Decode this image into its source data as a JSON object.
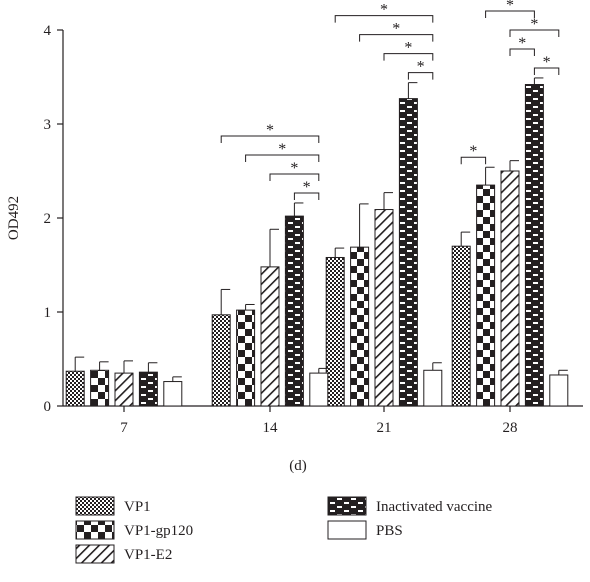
{
  "chart_data": {
    "type": "bar",
    "title": "",
    "subtitle": "(d)",
    "xlabel": "",
    "ylabel": "OD492",
    "ylim": [
      0,
      4
    ],
    "yticks": [
      "0",
      "1",
      "2",
      "3",
      "4"
    ],
    "categories": [
      "7",
      "14",
      "21",
      "28"
    ],
    "series": [
      {
        "name": "VP1",
        "pattern": "checker-fine",
        "values": [
          0.37,
          0.97,
          1.58,
          1.7
        ],
        "errors": [
          0.15,
          0.27,
          0.1,
          0.15
        ]
      },
      {
        "name": "VP1-gp120",
        "pattern": "checker-coarse",
        "values": [
          0.38,
          1.02,
          1.69,
          2.35
        ],
        "errors": [
          0.09,
          0.06,
          0.46,
          0.19
        ]
      },
      {
        "name": "VP1-E2",
        "pattern": "diagonal-hatch",
        "values": [
          0.35,
          1.48,
          2.09,
          2.5
        ],
        "errors": [
          0.13,
          0.4,
          0.18,
          0.11
        ]
      },
      {
        "name": "Inactivated vaccine",
        "pattern": "brick",
        "values": [
          0.36,
          2.02,
          3.27,
          3.42
        ],
        "errors": [
          0.1,
          0.14,
          0.17,
          0.07
        ]
      },
      {
        "name": "PBS",
        "pattern": "empty",
        "values": [
          0.26,
          0.35,
          0.38,
          0.33
        ],
        "errors": [
          0.05,
          0.05,
          0.08,
          0.05
        ]
      }
    ],
    "significance": {
      "marker": "*",
      "comparisons": [
        {
          "category": "14",
          "from": "VP1",
          "to": "PBS"
        },
        {
          "category": "14",
          "from": "VP1-gp120",
          "to": "PBS"
        },
        {
          "category": "14",
          "from": "VP1-E2",
          "to": "PBS"
        },
        {
          "category": "14",
          "from": "Inactivated vaccine",
          "to": "PBS"
        },
        {
          "category": "21",
          "from": "VP1",
          "to": "PBS"
        },
        {
          "category": "21",
          "from": "VP1-gp120",
          "to": "PBS"
        },
        {
          "category": "21",
          "from": "VP1-E2",
          "to": "PBS"
        },
        {
          "category": "21",
          "from": "Inactivated vaccine",
          "to": "PBS"
        },
        {
          "category": "28",
          "from": "VP1",
          "to": "PBS"
        },
        {
          "category": "28",
          "from": "VP1-gp120",
          "to": "PBS"
        },
        {
          "category": "28",
          "from": "VP1-E2",
          "to": "PBS"
        },
        {
          "category": "28",
          "from": "Inactivated vaccine",
          "to": "PBS"
        },
        {
          "category": "28",
          "from": "VP1",
          "to": "VP1-gp120"
        },
        {
          "category": "28",
          "from": "VP1-E2",
          "to": "Inactivated vaccine"
        },
        {
          "category": "28",
          "from": "VP1-gp120",
          "to": "Inactivated vaccine"
        }
      ]
    },
    "legend": {
      "placement": "bottom"
    },
    "grid": false
  }
}
